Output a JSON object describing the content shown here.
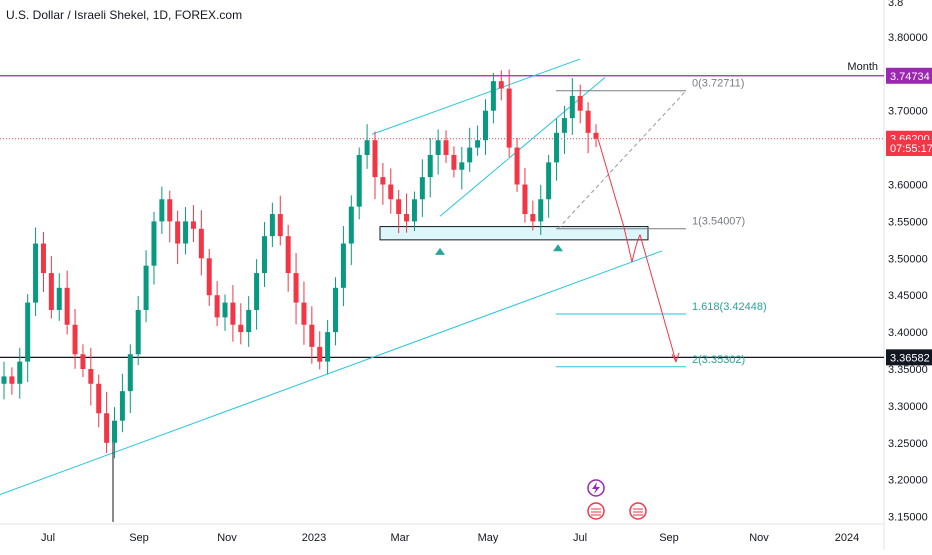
{
  "chart_data": {
    "type": "candlestick",
    "title": "U.S. Dollar / Israeli Shekel, 1D, FOREX.com",
    "x_labels": [
      "Jul",
      "Sep",
      "Nov",
      "2023",
      "Mar",
      "May",
      "Jul",
      "Sep",
      "Nov",
      "2024"
    ],
    "y_ticks": [
      "3.15000",
      "3.20000",
      "3.25000",
      "3.30000",
      "3.35000",
      "3.40000",
      "3.45000",
      "3.50000",
      "3.55000",
      "3.60000",
      "3.65000",
      "3.70000",
      "3.75000",
      "3.80000"
    ],
    "y_top_partial": "3.8",
    "ylim": [
      3.14,
      3.85
    ],
    "price_badges": [
      {
        "label": "3.74734",
        "value": 3.74734,
        "color": "#9c27b0"
      },
      {
        "label": "3.66200",
        "value": 3.662,
        "color": "#f23645"
      },
      {
        "label": "07:55:17",
        "value": 3.6495,
        "color": "#f23645"
      },
      {
        "label": "3.36582",
        "value": 3.36582,
        "color": "#131722"
      }
    ],
    "horizontal_lines": [
      {
        "name": "Month",
        "value": 3.74734,
        "color": "#9c27b0"
      },
      {
        "value": 3.36582,
        "color": "#131722"
      }
    ],
    "fib_levels": [
      {
        "label": "0(3.72711)",
        "value": 3.72711
      },
      {
        "label": "1(3.54007)",
        "value": 3.54007
      },
      {
        "label": "1.618(3.42448)",
        "value": 3.42448
      },
      {
        "label": "2(3.35302)",
        "value": 3.35302
      }
    ],
    "support_zone": [
      3.525,
      3.543
    ],
    "current_price": 3.662,
    "candles_approx": [
      3.34,
      3.33,
      3.36,
      3.44,
      3.52,
      3.48,
      3.43,
      3.46,
      3.41,
      3.37,
      3.35,
      3.33,
      3.29,
      3.25,
      3.28,
      3.32,
      3.37,
      3.43,
      3.49,
      3.55,
      3.58,
      3.55,
      3.52,
      3.55,
      3.54,
      3.5,
      3.45,
      3.42,
      3.44,
      3.41,
      3.4,
      3.43,
      3.48,
      3.53,
      3.56,
      3.53,
      3.48,
      3.44,
      3.41,
      3.38,
      3.36,
      3.4,
      3.46,
      3.52,
      3.57,
      3.64,
      3.66,
      3.61,
      3.6,
      3.58,
      3.56,
      3.55,
      3.58,
      3.61,
      3.64,
      3.66,
      3.64,
      3.62,
      3.63,
      3.65,
      3.66,
      3.7,
      3.74,
      3.73,
      3.65,
      3.6,
      3.56,
      3.55,
      3.58,
      3.63,
      3.67,
      3.69,
      3.72,
      3.7,
      3.67,
      3.662
    ]
  },
  "badges_icons": [
    "lightning-icon",
    "us-flag-icon",
    "us-flag-icon"
  ]
}
